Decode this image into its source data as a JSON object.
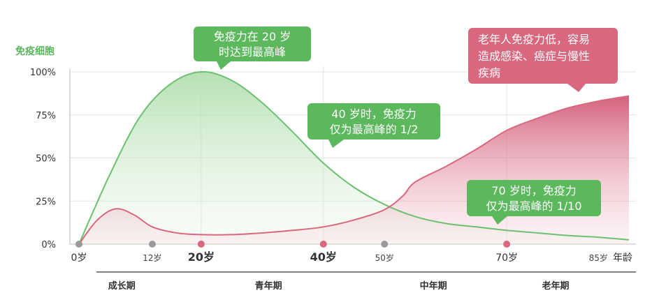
{
  "chart_data": {
    "type": "area",
    "ylabel": "免疫细胞",
    "xlabel": "年龄",
    "yticks": [
      "100%",
      "75%",
      "50%",
      "25%",
      "0%"
    ],
    "ylim": [
      0,
      100
    ],
    "xlim": [
      0,
      90
    ],
    "xticks": [
      {
        "age": 0,
        "label": "0岁",
        "style": "unit",
        "dot": "gray"
      },
      {
        "age": 12,
        "label": "12岁",
        "style": "small",
        "dot": "gray"
      },
      {
        "age": 20,
        "label": "20岁",
        "style": "big",
        "dot": "pink"
      },
      {
        "age": 40,
        "label": "40岁",
        "style": "big",
        "dot": "pink"
      },
      {
        "age": 50,
        "label": "50岁",
        "style": "small",
        "dot": "gray"
      },
      {
        "age": 70,
        "label": "70岁",
        "style": "unit",
        "dot": "pink"
      },
      {
        "age": 85,
        "label": "85岁",
        "style": "small",
        "dot": "none"
      }
    ],
    "series": [
      {
        "color": "#6cc070",
        "points": [
          [
            0,
            0
          ],
          [
            5,
            40
          ],
          [
            10,
            74
          ],
          [
            15,
            93
          ],
          [
            20,
            100
          ],
          [
            25,
            95
          ],
          [
            30,
            82
          ],
          [
            35,
            65
          ],
          [
            40,
            47
          ],
          [
            45,
            33
          ],
          [
            50,
            23
          ],
          [
            55,
            16
          ],
          [
            60,
            12
          ],
          [
            65,
            10
          ],
          [
            70,
            8
          ],
          [
            75,
            6.5
          ],
          [
            80,
            5
          ],
          [
            85,
            4
          ],
          [
            90,
            2.5
          ]
        ]
      },
      {
        "color": "#d9677e",
        "points": [
          [
            0,
            0
          ],
          [
            3,
            14
          ],
          [
            6,
            20.5
          ],
          [
            9,
            17
          ],
          [
            12,
            10
          ],
          [
            16,
            6.5
          ],
          [
            20,
            5.5
          ],
          [
            25,
            5.5
          ],
          [
            30,
            6.5
          ],
          [
            35,
            8
          ],
          [
            40,
            10
          ],
          [
            45,
            14
          ],
          [
            50,
            20
          ],
          [
            53,
            28
          ],
          [
            55,
            36
          ],
          [
            60,
            45
          ],
          [
            65,
            55
          ],
          [
            70,
            66
          ],
          [
            75,
            73
          ],
          [
            80,
            79
          ],
          [
            85,
            83
          ],
          [
            90,
            86
          ]
        ]
      }
    ],
    "phases": [
      {
        "label": "成长期",
        "age": 7
      },
      {
        "label": "青年期",
        "age": 31
      },
      {
        "label": "中年期",
        "age": 58
      },
      {
        "label": "老年期",
        "age": 78
      }
    ],
    "annotations": [
      {
        "lines": [
          "免疫力在 20 岁",
          "时达到最高峰"
        ],
        "color": "#5cb85c"
      },
      {
        "lines": [
          "40 岁时，免疫力",
          "仅为最高峰的 1/2"
        ],
        "color": "#5cb85c"
      },
      {
        "lines": [
          "老年人免疫力低，容易",
          "造成感染、癌症与慢性",
          "疾病"
        ],
        "color": "#d9677e"
      },
      {
        "lines": [
          "70 岁时，免疫力",
          "仅为最高峰的 1/10"
        ],
        "color": "#5cb85c"
      }
    ]
  }
}
